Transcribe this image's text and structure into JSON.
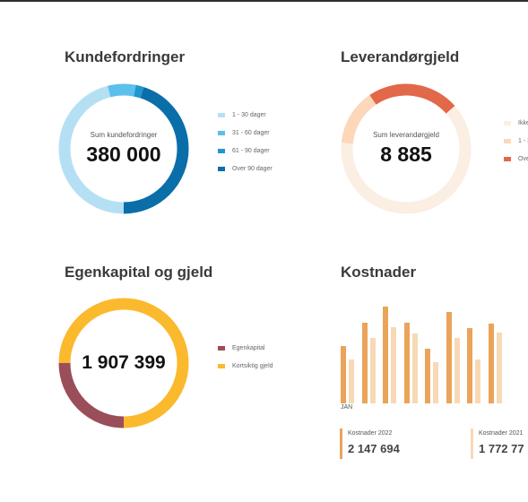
{
  "colors": {
    "receivables": [
      "#b5e0f4",
      "#5bc0ea",
      "#1f97cf",
      "#0a6ea9"
    ],
    "payables": [
      "#fbeee2",
      "#fcd7b9",
      "#e2684a"
    ],
    "equity": [
      "#9a4e59",
      "#fbb92d"
    ],
    "costs_2022": "#eaa45a",
    "costs_2021": "#f7d9b5"
  },
  "receivables": {
    "title": "Kundefordringer",
    "sum_label": "Sum kundefordringer",
    "sum_value": "380 000",
    "legend": [
      "1 - 30 dager",
      "31 - 60 dager",
      "61 - 90 dager",
      "Over 90 dager"
    ],
    "shares": [
      0.46,
      0.07,
      0.02,
      0.45
    ]
  },
  "payables": {
    "title": "Leverandørgjeld",
    "sum_label": "Sum  leverandørgjeld",
    "sum_value": "8 885",
    "legend": [
      "Ikke",
      "1 - 3",
      "Ove"
    ],
    "shares": [
      0.63,
      0.14,
      0.23
    ]
  },
  "equity": {
    "title": "Egenkapital og gjeld",
    "sum_value": "1 907 399",
    "legend": [
      "Egenkapital",
      "Kortsiktig gjeld"
    ],
    "shares": [
      0.25,
      0.75
    ]
  },
  "costs": {
    "title": "Kostnader",
    "x_start_label": "JAN",
    "series_2022": [
      0.55,
      0.78,
      0.93,
      0.78,
      0.53,
      0.88,
      0.72,
      0.77
    ],
    "series_2021": [
      0.42,
      0.63,
      0.73,
      0.67,
      0.4,
      0.63,
      0.42,
      0.68
    ],
    "kpi_2022_label": "Kostnader 2022",
    "kpi_2022_value": "2 147 694",
    "kpi_2021_label": "Kostnader 2021",
    "kpi_2021_value": "1 772 77"
  }
}
